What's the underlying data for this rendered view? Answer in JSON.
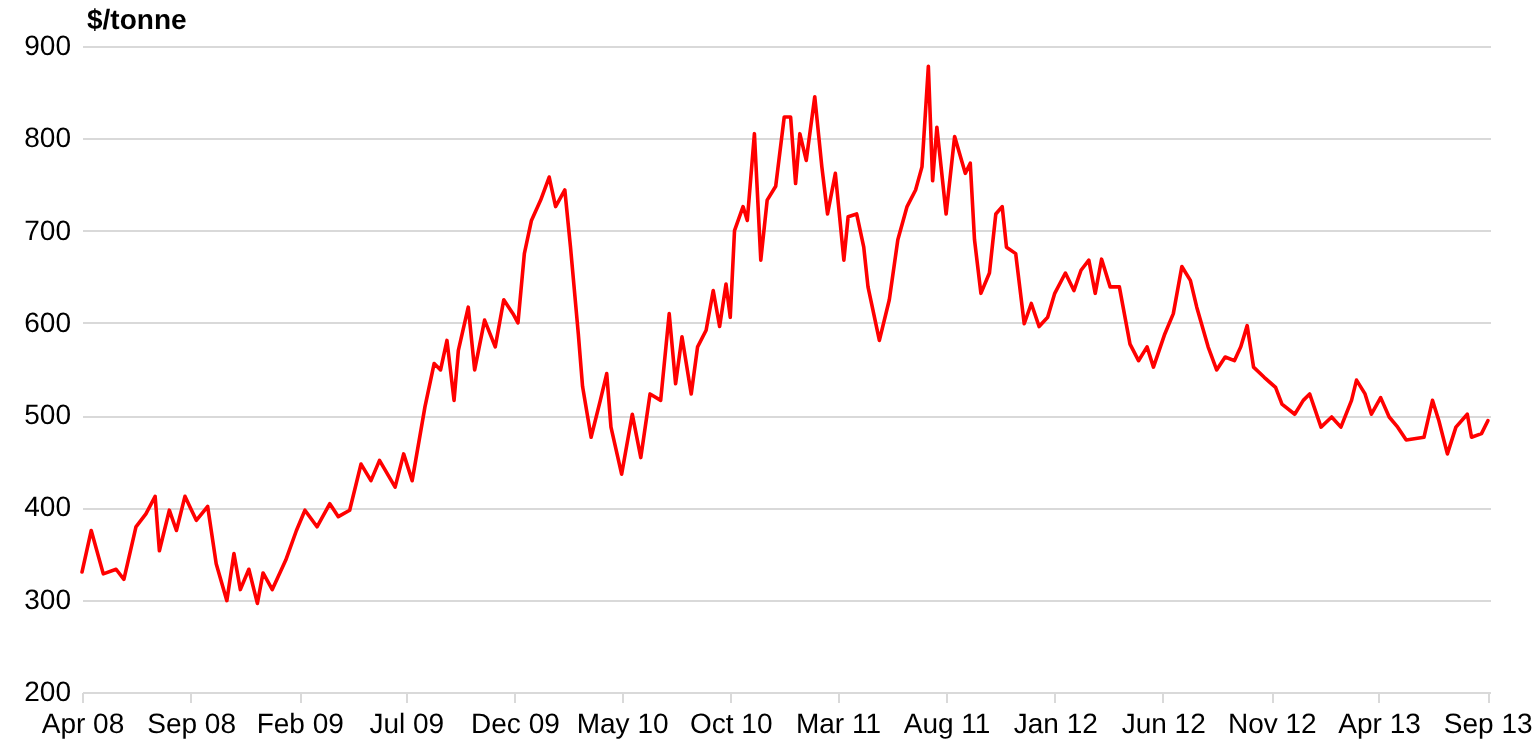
{
  "chart_data": {
    "type": "line",
    "ylabel": "$/tonne",
    "x": [
      "2008-04-01",
      "2008-04-14",
      "2008-05-01",
      "2008-05-19",
      "2008-05-30",
      "2008-06-16",
      "2008-06-30",
      "2008-07-13",
      "2008-07-19",
      "2008-08-02",
      "2008-08-12",
      "2008-08-24",
      "2008-09-09",
      "2008-09-25",
      "2008-10-07",
      "2008-10-22",
      "2008-11-01",
      "2008-11-10",
      "2008-11-22",
      "2008-12-04",
      "2008-12-12",
      "2008-12-25",
      "2009-01-13",
      "2009-01-28",
      "2009-02-09",
      "2009-02-26",
      "2009-03-16",
      "2009-03-28",
      "2009-04-13",
      "2009-04-29",
      "2009-05-13",
      "2009-05-25",
      "2009-06-16",
      "2009-06-28",
      "2009-07-10",
      "2009-07-28",
      "2009-08-10",
      "2009-08-19",
      "2009-08-28",
      "2009-09-07",
      "2009-09-13",
      "2009-09-27",
      "2009-10-06",
      "2009-10-20",
      "2009-11-04",
      "2009-11-16",
      "2009-11-29",
      "2009-12-06",
      "2009-12-15",
      "2009-12-25",
      "2010-01-07",
      "2010-01-19",
      "2010-01-28",
      "2010-02-10",
      "2010-02-18",
      "2010-03-01",
      "2010-03-07",
      "2010-03-19",
      "2010-04-01",
      "2010-04-10",
      "2010-04-16",
      "2010-05-01",
      "2010-05-16",
      "2010-05-28",
      "2010-06-10",
      "2010-06-25",
      "2010-07-07",
      "2010-07-16",
      "2010-07-25",
      "2010-08-07",
      "2010-08-16",
      "2010-08-28",
      "2010-09-07",
      "2010-09-16",
      "2010-09-25",
      "2010-10-01",
      "2010-10-07",
      "2010-10-19",
      "2010-10-25",
      "2010-11-04",
      "2010-11-13",
      "2010-11-22",
      "2010-12-04",
      "2010-12-16",
      "2010-12-25",
      "2011-01-01",
      "2011-01-07",
      "2011-01-16",
      "2011-01-28",
      "2011-02-07",
      "2011-02-15",
      "2011-02-26",
      "2011-03-10",
      "2011-03-16",
      "2011-03-28",
      "2011-04-07",
      "2011-04-13",
      "2011-04-29",
      "2011-05-13",
      "2011-05-25",
      "2011-06-07",
      "2011-06-19",
      "2011-06-28",
      "2011-07-07",
      "2011-07-13",
      "2011-07-19",
      "2011-08-01",
      "2011-08-13",
      "2011-08-28",
      "2011-09-04",
      "2011-09-10",
      "2011-09-19",
      "2011-10-01",
      "2011-10-10",
      "2011-10-19",
      "2011-10-25",
      "2011-11-07",
      "2011-11-19",
      "2011-11-29",
      "2011-12-10",
      "2011-12-22",
      "2012-01-01",
      "2012-01-16",
      "2012-01-28",
      "2012-02-07",
      "2012-02-18",
      "2012-02-27",
      "2012-03-07",
      "2012-03-19",
      "2012-04-01",
      "2012-04-16",
      "2012-04-28",
      "2012-05-10",
      "2012-05-19",
      "2012-06-04",
      "2012-06-16",
      "2012-06-28",
      "2012-07-10",
      "2012-07-19",
      "2012-08-04",
      "2012-08-16",
      "2012-08-28",
      "2012-09-10",
      "2012-09-19",
      "2012-09-28",
      "2012-10-07",
      "2012-10-22",
      "2012-11-07",
      "2012-11-16",
      "2012-12-04",
      "2012-12-16",
      "2012-12-25",
      "2013-01-10",
      "2013-01-25",
      "2013-02-07",
      "2013-02-22",
      "2013-03-01",
      "2013-03-13",
      "2013-03-22",
      "2013-04-04",
      "2013-04-16",
      "2013-04-28",
      "2013-05-10",
      "2013-06-04",
      "2013-06-16",
      "2013-06-25",
      "2013-07-07",
      "2013-07-19",
      "2013-08-04",
      "2013-08-10",
      "2013-08-24",
      "2013-09-02"
    ],
    "series": [
      {
        "color": "#ff0000",
        "values": [
          330,
          375,
          328,
          333,
          322,
          379,
          393,
          412,
          353,
          397,
          375,
          412,
          386,
          401,
          339,
          299,
          350,
          311,
          333,
          296,
          329,
          311,
          343,
          375,
          397,
          379,
          404,
          390,
          397,
          447,
          429,
          451,
          422,
          458,
          429,
          509,
          556,
          549,
          581,
          516,
          570,
          617,
          549,
          603,
          574,
          625,
          610,
          600,
          675,
          711,
          733,
          758,
          726,
          744,
          682,
          588,
          531,
          476,
          516,
          545,
          487,
          436,
          501,
          454,
          523,
          516,
          610,
          534,
          585,
          523,
          574,
          592,
          635,
          596,
          642,
          606,
          700,
          726,
          711,
          805,
          668,
          733,
          748,
          823,
          823,
          751,
          805,
          776,
          845,
          769,
          718,
          762,
          668,
          715,
          718,
          682,
          639,
          581,
          625,
          690,
          726,
          744,
          769,
          878,
          754,
          812,
          718,
          802,
          762,
          773,
          690,
          632,
          654,
          718,
          726,
          682,
          675,
          599,
          621,
          596,
          606,
          632,
          654,
          635,
          657,
          668,
          632,
          669,
          639,
          639,
          577,
          559,
          574,
          552,
          588,
          610,
          661,
          646,
          617,
          574,
          549,
          563,
          559,
          574,
          597,
          552,
          541,
          530,
          512,
          501,
          516,
          523,
          487,
          498,
          487,
          516,
          538,
          523,
          501,
          519,
          498,
          487,
          473,
          476,
          516,
          494,
          458,
          487,
          501,
          476,
          480,
          494
        ]
      }
    ],
    "xlim": [
      "2008-04-01",
      "2013-09-05"
    ],
    "xticks": [
      {
        "value": "2008-04",
        "label": "Apr 08"
      },
      {
        "value": "2008-09",
        "label": "Sep 08"
      },
      {
        "value": "2009-02",
        "label": "Feb 09"
      },
      {
        "value": "2009-07",
        "label": "Jul 09"
      },
      {
        "value": "2009-12",
        "label": "Dec 09"
      },
      {
        "value": "2010-05",
        "label": "May 10"
      },
      {
        "value": "2010-10",
        "label": "Oct 10"
      },
      {
        "value": "2011-03",
        "label": "Mar 11"
      },
      {
        "value": "2011-08",
        "label": "Aug 11"
      },
      {
        "value": "2012-01",
        "label": "Jan 12"
      },
      {
        "value": "2012-06",
        "label": "Jun 12"
      },
      {
        "value": "2012-11",
        "label": "Nov 12"
      },
      {
        "value": "2013-04",
        "label": "Apr 13"
      },
      {
        "value": "2013-09",
        "label": "Sep 13"
      }
    ],
    "ylim": [
      200,
      900
    ],
    "yticks": [
      200,
      300,
      400,
      500,
      600,
      700,
      800,
      900
    ],
    "grid": "y",
    "legend": false,
    "marker": "none",
    "line_style": "solid"
  }
}
